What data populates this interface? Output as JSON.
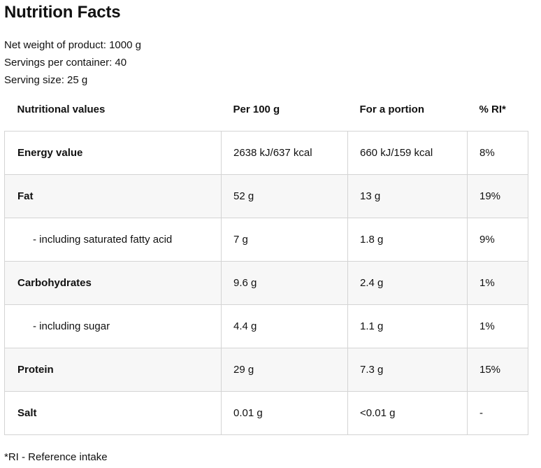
{
  "title": "Nutrition Facts",
  "product_info": [
    "Net weight of product: 1000 g",
    "Servings per container: 40",
    "Serving size: 25 g"
  ],
  "table": {
    "headers": [
      "Nutritional values",
      "Per 100 g",
      "For a portion",
      "% RI*"
    ],
    "rows": [
      {
        "name": "Energy value",
        "per100": "2638 kJ/637 kcal",
        "portion": "660 kJ/159 kcal",
        "ri": "8%"
      },
      {
        "name": "Fat",
        "per100": "52 g",
        "portion": "13 g",
        "ri": "19%"
      },
      {
        "name": "- including saturated fatty acid",
        "per100": "7 g",
        "portion": "1.8 g",
        "ri": "9%"
      },
      {
        "name": "Carbohydrates",
        "per100": "9.6 g",
        "portion": "2.4 g",
        "ri": "1%"
      },
      {
        "name": "- including sugar",
        "per100": "4.4 g",
        "portion": "1.1 g",
        "ri": "1%"
      },
      {
        "name": "Protein",
        "per100": "29 g",
        "portion": "7.3 g",
        "ri": "15%"
      },
      {
        "name": "Salt",
        "per100": "0.01 g",
        "portion": "<0.01 g",
        "ri": "-"
      }
    ]
  },
  "footnote": "*RI - Reference intake"
}
